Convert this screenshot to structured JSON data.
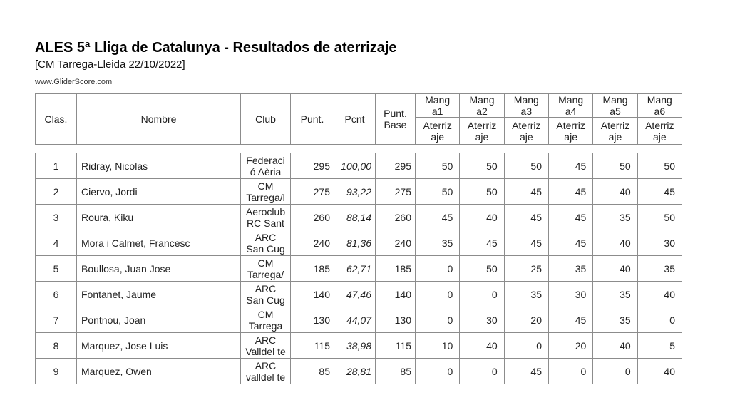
{
  "page": {
    "title": "ALES 5ª Lliga de Catalunya - Resultados de aterrizaje",
    "subtitle": "[CM Tarrega-Lleida 22/10/2022]",
    "website": "www.GliderScore.com"
  },
  "table": {
    "headers": {
      "clas": "Clas.",
      "nombre": "Nombre",
      "club": "Club",
      "punt": "Punt.",
      "pcnt": "Pcnt",
      "punt_base": "Punt.\nBase",
      "mangas": [
        {
          "top": "Mang\na1",
          "bottom": "Aterriz\naje"
        },
        {
          "top": "Mang\na2",
          "bottom": "Aterriz\naje"
        },
        {
          "top": "Mang\na3",
          "bottom": "Aterriz\naje"
        },
        {
          "top": "Mang\na4",
          "bottom": "Aterriz\naje"
        },
        {
          "top": "Mang\na5",
          "bottom": "Aterriz\naje"
        },
        {
          "top": "Mang\na6",
          "bottom": "Aterriz\naje"
        }
      ]
    },
    "rows": [
      {
        "clas": "1",
        "nombre": "Ridray, Nicolas",
        "club": "Federaci\nó Aèria",
        "punt": "295",
        "pcnt": "100,00",
        "punt_base": "295",
        "mangas": [
          "50",
          "50",
          "50",
          "45",
          "50",
          "50"
        ]
      },
      {
        "clas": "2",
        "nombre": "Ciervo, Jordi",
        "club": "CM\nTarrega/l",
        "punt": "275",
        "pcnt": "93,22",
        "punt_base": "275",
        "mangas": [
          "50",
          "50",
          "45",
          "45",
          "40",
          "45"
        ]
      },
      {
        "clas": "3",
        "nombre": "Roura, Kiku",
        "club": "Aeroclub\nRC Sant",
        "punt": "260",
        "pcnt": "88,14",
        "punt_base": "260",
        "mangas": [
          "45",
          "40",
          "45",
          "45",
          "35",
          "50"
        ]
      },
      {
        "clas": "4",
        "nombre": "Mora i Calmet, Francesc",
        "club": "ARC\nSan Cug",
        "punt": "240",
        "pcnt": "81,36",
        "punt_base": "240",
        "mangas": [
          "35",
          "45",
          "45",
          "45",
          "40",
          "30"
        ]
      },
      {
        "clas": "5",
        "nombre": "Boullosa, Juan Jose",
        "club": "CM\nTarrega/",
        "punt": "185",
        "pcnt": "62,71",
        "punt_base": "185",
        "mangas": [
          "0",
          "50",
          "25",
          "35",
          "40",
          "35"
        ]
      },
      {
        "clas": "6",
        "nombre": "Fontanet, Jaume",
        "club": "ARC\nSan Cug",
        "punt": "140",
        "pcnt": "47,46",
        "punt_base": "140",
        "mangas": [
          "0",
          "0",
          "35",
          "30",
          "35",
          "40"
        ]
      },
      {
        "clas": "7",
        "nombre": "Pontnou, Joan",
        "club": "CM\nTarrega",
        "punt": "130",
        "pcnt": "44,07",
        "punt_base": "130",
        "mangas": [
          "0",
          "30",
          "20",
          "45",
          "35",
          "0"
        ]
      },
      {
        "clas": "8",
        "nombre": "Marquez, Jose Luis",
        "club": "ARC\nValldel te",
        "punt": "115",
        "pcnt": "38,98",
        "punt_base": "115",
        "mangas": [
          "10",
          "40",
          "0",
          "20",
          "40",
          "5"
        ]
      },
      {
        "clas": "9",
        "nombre": "Marquez, Owen",
        "club": "ARC\nvalldel te",
        "punt": "85",
        "pcnt": "28,81",
        "punt_base": "85",
        "mangas": [
          "0",
          "0",
          "45",
          "0",
          "0",
          "40"
        ]
      }
    ]
  }
}
